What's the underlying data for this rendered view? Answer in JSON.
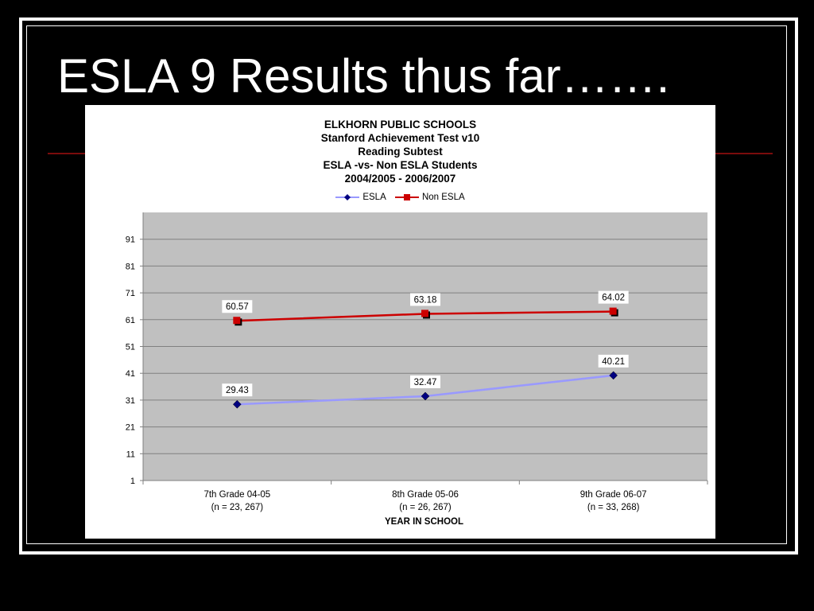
{
  "slide": {
    "title": "ESLA 9 Results thus far……."
  },
  "chart_data": {
    "type": "line",
    "title": [
      "ELKHORN PUBLIC SCHOOLS",
      "Stanford Achievement Test v10",
      "Reading Subtest",
      "ESLA -vs- Non ESLA Students",
      "2004/2005 - 2006/2007"
    ],
    "categories": [
      [
        "7th Grade 04-05",
        "(n = 23, 267)"
      ],
      [
        "8th Grade 05-06",
        "(n = 26, 267)"
      ],
      [
        "9th Grade 06-07",
        "(n = 33, 268)"
      ]
    ],
    "series": [
      {
        "name": "ESLA",
        "values": [
          29.43,
          32.47,
          40.21
        ],
        "labels": [
          "29.43",
          "32.47",
          "40.21"
        ],
        "color": "#9999ff",
        "marker": "diamond",
        "marker_color": "#000080"
      },
      {
        "name": "Non ESLA",
        "values": [
          60.57,
          63.18,
          64.02
        ],
        "labels": [
          "60.57",
          "63.18",
          "64.02"
        ],
        "color": "#cc0000",
        "marker": "square",
        "marker_color": "#cc0000"
      }
    ],
    "xlabel": "YEAR IN SCHOOL",
    "ylabel": "",
    "ylim": [
      1,
      101
    ],
    "yticks": [
      "1",
      "11",
      "21",
      "31",
      "41",
      "51",
      "61",
      "71",
      "81",
      "91"
    ],
    "grid": true,
    "plot_background": "#c0c0c0",
    "legend_position": "top"
  }
}
